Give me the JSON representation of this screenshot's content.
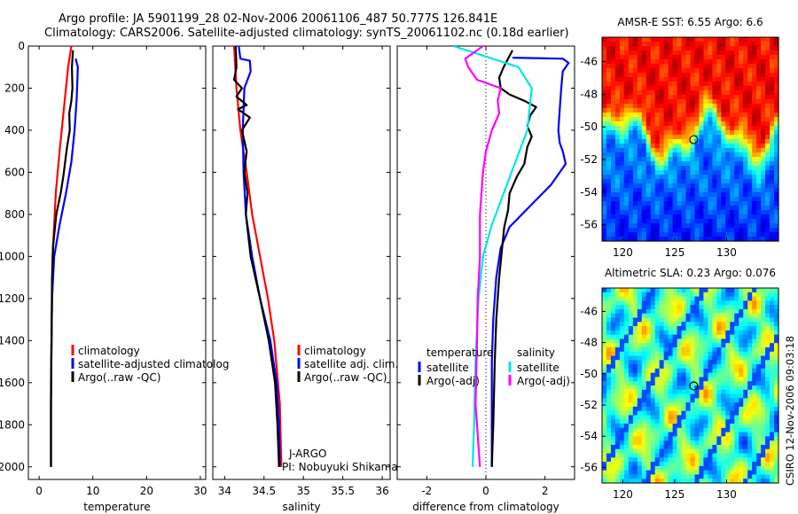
{
  "header": {
    "line1": "Argo profile: JA 5901199_28 02-Nov-2006 20061106_487 50.777S 126.841E",
    "line2": "Climatology: CARS2006. Satellite-adjusted climatology: synTS_20061102.nc (0.18d earlier)"
  },
  "stamp": "CSIRO 12-Nov-2006 09:03:18",
  "colors": {
    "red": "#ff0000",
    "blue": "#0000ff",
    "black": "#000000",
    "cyan": "#00e5e5",
    "magenta": "#ff00ff"
  },
  "chart_data": [
    {
      "type": "line",
      "xlabel": "temperature",
      "xlim": [
        -2,
        31
      ],
      "xticks": [
        0,
        10,
        20,
        30
      ],
      "ylim": [
        2060,
        0
      ],
      "yticks": [
        0,
        200,
        400,
        600,
        800,
        1000,
        1200,
        1400,
        1600,
        1800,
        2000
      ],
      "legend": [
        "climatology",
        "satellite-adjusted climatolog",
        "Argo(..raw -QC)"
      ],
      "series": [
        {
          "key": "red",
          "x": [
            6.0,
            5.4,
            4.6,
            3.8,
            3.1,
            2.7,
            2.5,
            2.4,
            2.3,
            2.2,
            2.2,
            2.2
          ],
          "y": [
            0,
            100,
            300,
            500,
            700,
            900,
            1000,
            1200,
            1400,
            1600,
            1800,
            2000
          ]
        },
        {
          "key": "blue",
          "x": [
            6.8,
            7.2,
            7.0,
            6.6,
            6.0,
            5.0,
            3.8,
            2.8,
            2.4,
            2.3,
            2.2,
            2.2
          ],
          "y": [
            60,
            100,
            250,
            400,
            550,
            700,
            850,
            1000,
            1200,
            1400,
            1700,
            2000
          ]
        },
        {
          "key": "black",
          "x": [
            6.3,
            6.1,
            6.2,
            6.0,
            5.6,
            5.7,
            5.2,
            4.8,
            4.5,
            4.0,
            3.2,
            2.6,
            2.4,
            2.3,
            2.2,
            2.2
          ],
          "y": [
            20,
            100,
            200,
            260,
            320,
            400,
            480,
            560,
            620,
            700,
            800,
            950,
            1100,
            1400,
            1700,
            2000
          ]
        }
      ]
    },
    {
      "type": "line",
      "xlabel": "salinity",
      "xlim": [
        33.85,
        36.1
      ],
      "xticks": [
        34,
        34.5,
        35,
        35.5,
        36
      ],
      "xticklabels": [
        "34",
        "34.5",
        "35",
        "35.5",
        "36"
      ],
      "ylim": [
        2060,
        0
      ],
      "legend": [
        "climatology",
        "satellite adj. clim.",
        "Argo(..raw -QC)"
      ],
      "annotation": [
        "J-ARGO",
        "PI: Nobuyuki Shikama"
      ],
      "series": [
        {
          "key": "red",
          "x": [
            34.12,
            34.15,
            34.2,
            34.28,
            34.35,
            34.45,
            34.55,
            34.63,
            34.7,
            34.72
          ],
          "y": [
            0,
            200,
            400,
            600,
            800,
            1000,
            1200,
            1400,
            1700,
            2000
          ]
        },
        {
          "key": "blue",
          "x": [
            34.18,
            34.2,
            34.32,
            34.33,
            34.25,
            34.23,
            34.24,
            34.27,
            34.35,
            34.45,
            34.58,
            34.66,
            34.69,
            34.7
          ],
          "y": [
            0,
            60,
            70,
            120,
            200,
            400,
            600,
            800,
            1000,
            1200,
            1400,
            1600,
            1800,
            2000
          ]
        },
        {
          "key": "black",
          "x": [
            34.14,
            34.15,
            34.12,
            34.22,
            34.15,
            34.28,
            34.17,
            34.32,
            34.22,
            34.28,
            34.25,
            34.29,
            34.27,
            34.33,
            34.45,
            34.56,
            34.64,
            34.67,
            34.69
          ],
          "y": [
            0,
            100,
            160,
            200,
            240,
            280,
            300,
            340,
            400,
            500,
            600,
            700,
            800,
            1000,
            1200,
            1400,
            1600,
            1800,
            2000
          ]
        }
      ]
    },
    {
      "type": "line",
      "xlabel": "difference from climatology",
      "xlim": [
        -3,
        3
      ],
      "xticks": [
        -2,
        0,
        2
      ],
      "ylim": [
        2060,
        0
      ],
      "legend": {
        "left_title": "temperature",
        "right_title": "salinity",
        "left": [
          "satellite",
          "Argo(-adj)"
        ],
        "right": [
          "satellite",
          "Argo(-adj)"
        ]
      },
      "series": [
        {
          "key": "blue",
          "x": [
            0.9,
            2.6,
            2.8,
            2.6,
            2.55,
            2.5,
            2.45,
            2.5,
            2.6,
            2.7,
            2.2,
            1.5,
            0.8,
            0.5,
            0.35,
            0.25,
            0.2,
            0.2,
            0.2
          ],
          "y": [
            55,
            60,
            80,
            120,
            200,
            300,
            400,
            460,
            500,
            560,
            660,
            760,
            860,
            960,
            1100,
            1300,
            1500,
            1800,
            2000
          ]
        },
        {
          "key": "black",
          "x": [
            0.9,
            0.6,
            0.45,
            0.5,
            0.8,
            1.3,
            1.7,
            1.5,
            1.4,
            1.55,
            1.4,
            1.3,
            1.05,
            0.8,
            0.75,
            0.62,
            0.55,
            0.45,
            0.35,
            0.3,
            0.25,
            0.2
          ],
          "y": [
            20,
            100,
            150,
            200,
            230,
            260,
            290,
            330,
            380,
            430,
            480,
            560,
            620,
            700,
            780,
            860,
            960,
            1100,
            1300,
            1500,
            1800,
            2000
          ]
        },
        {
          "key": "cyan",
          "x": [
            -1.1,
            1.1,
            1.55,
            1.4,
            1.0,
            0.6,
            0.2,
            -0.1,
            -0.25,
            -0.35,
            -0.4,
            -0.45
          ],
          "y": [
            0,
            100,
            200,
            400,
            550,
            700,
            850,
            1000,
            1200,
            1500,
            1800,
            2000
          ]
        },
        {
          "key": "magenta",
          "x": [
            -0.1,
            -0.7,
            -0.6,
            -0.3,
            0.5,
            0.4,
            0.45,
            0.2,
            0.0,
            -0.1,
            -0.2,
            -0.2,
            -0.28,
            -0.3,
            -0.35,
            -0.2
          ],
          "y": [
            0,
            60,
            100,
            160,
            200,
            260,
            320,
            400,
            500,
            600,
            800,
            1000,
            1200,
            1400,
            1700,
            2000
          ]
        }
      ]
    },
    {
      "type": "heatmap",
      "title": "AMSR-E SST: 6.55 Argo: 6.6",
      "xlim": [
        118,
        135
      ],
      "ylim": [
        -57,
        -44.5
      ],
      "xticks": [
        120,
        125,
        130
      ],
      "yticks": [
        -46,
        -48,
        -50,
        -52,
        -54,
        -56
      ],
      "marker": [
        126.84,
        -50.78
      ],
      "colormap": "jet-sst"
    },
    {
      "type": "heatmap",
      "title": "Altimetric SLA: 0.23 Argo: 0.076",
      "xlim": [
        118,
        135
      ],
      "ylim": [
        -57,
        -44.5
      ],
      "xticks": [
        120,
        125,
        130
      ],
      "yticks": [
        -46,
        -48,
        -50,
        -52,
        -54,
        -56
      ],
      "marker": [
        126.84,
        -50.78
      ],
      "colormap": "jet-sla"
    }
  ]
}
